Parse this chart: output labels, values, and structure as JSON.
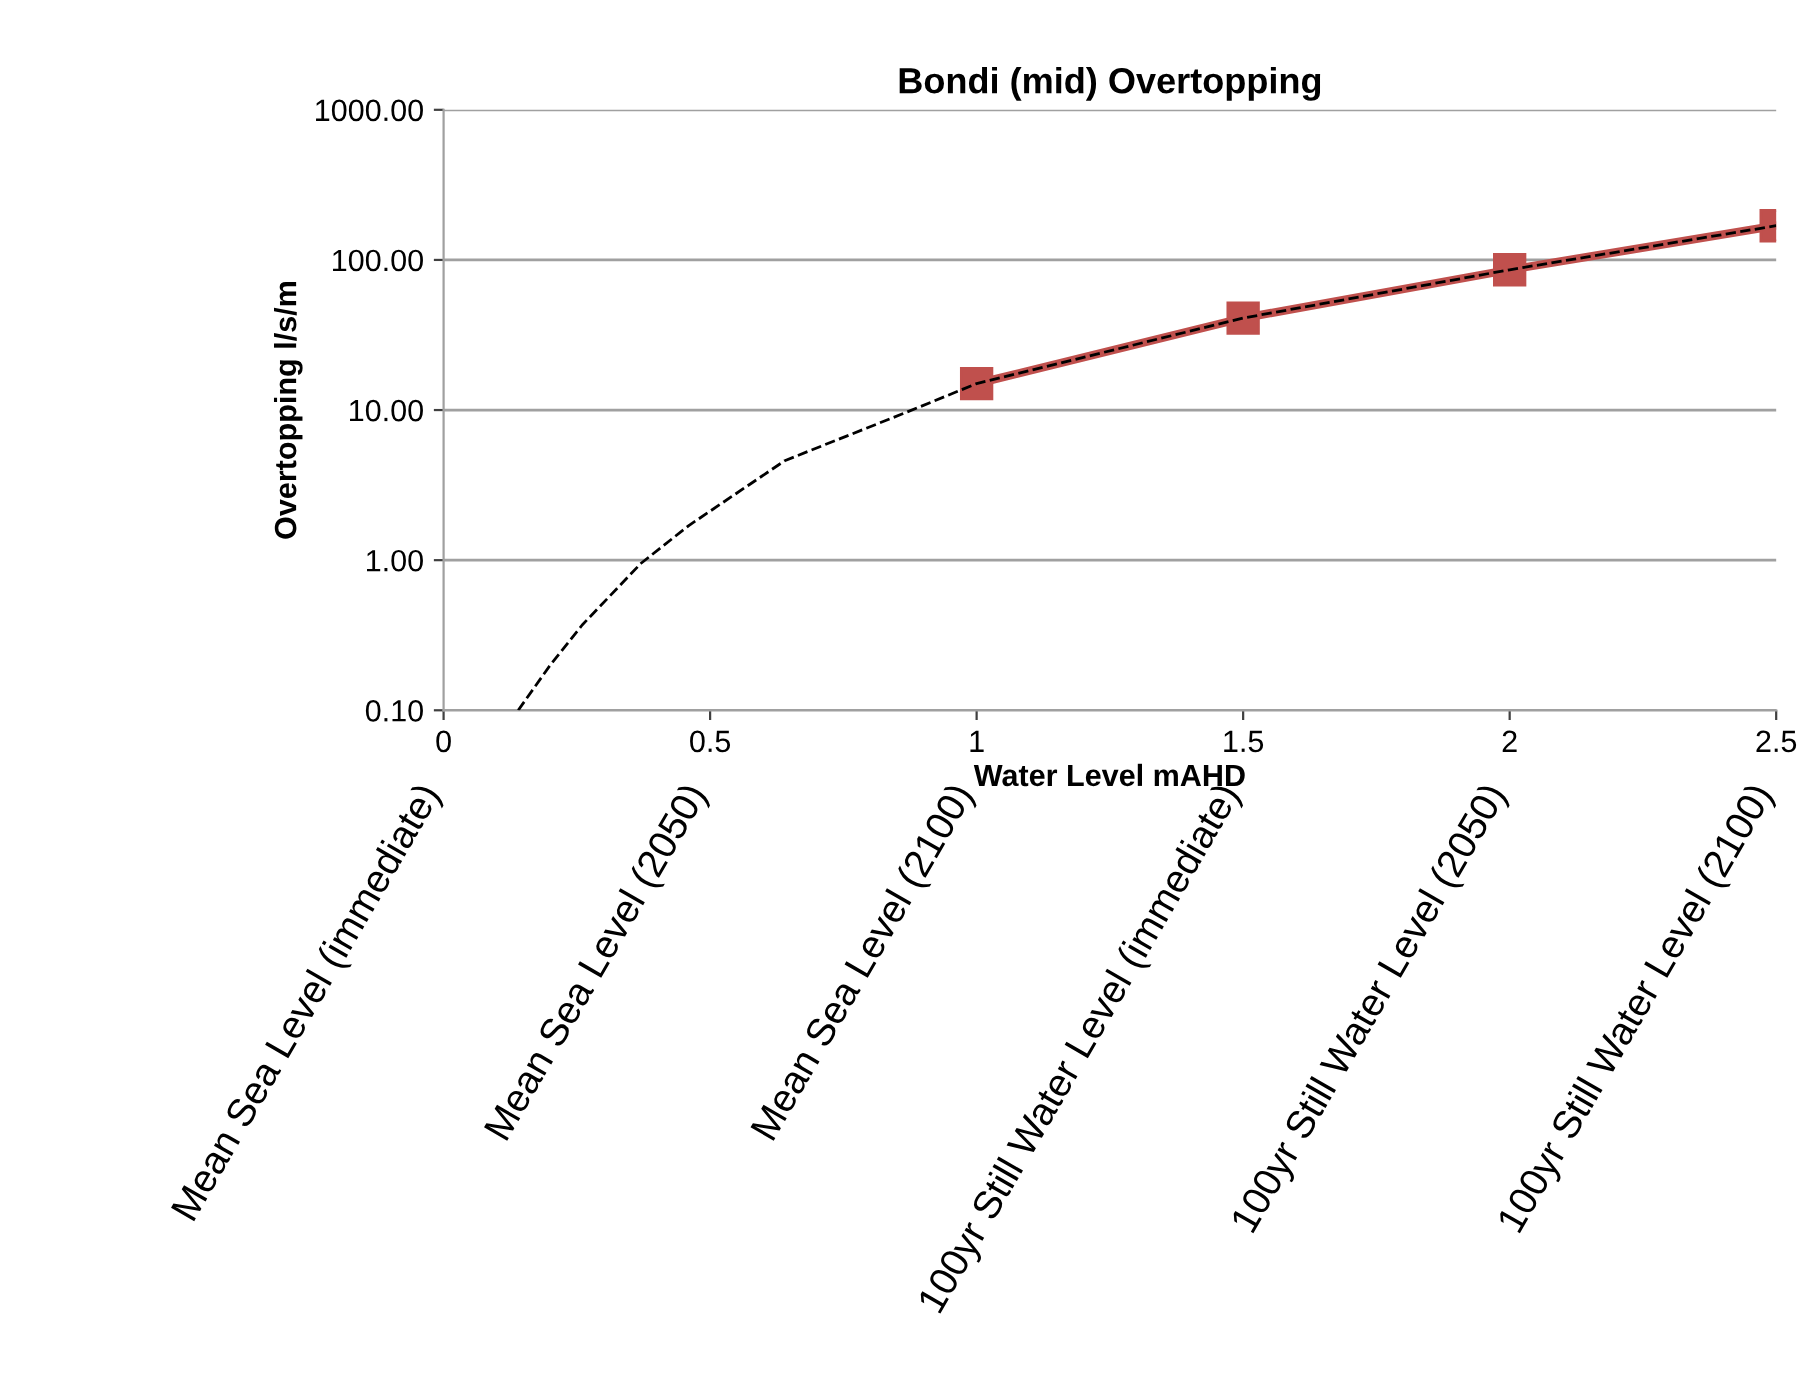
{
  "chart_data": {
    "type": "line",
    "title": "Bondi (mid) Overtopping",
    "xlabel": "Water Level mAHD",
    "ylabel": "Overtopping l/s/m",
    "log": "y",
    "grid": "y",
    "xlim": [
      0,
      2.5
    ],
    "xticks": [
      0,
      0.5,
      1,
      1.5,
      2,
      2.5
    ],
    "ylim": [
      0.1,
      1000
    ],
    "yticks": [
      {
        "value": 0.1,
        "label": "0.10"
      },
      {
        "value": 1,
        "label": "1.00"
      },
      {
        "value": 10,
        "label": "10.00"
      },
      {
        "value": 100,
        "label": "100.00"
      },
      {
        "value": 1000,
        "label": "1000.00"
      }
    ],
    "annotations": [
      "Mean Sea Level (immediate)",
      "Mean Sea Level (2050)",
      "Mean Sea Level (2100)",
      "100yr Still Water Level (immediate)",
      "100yr Still Water Level (2050)",
      "100yr Still Water Level (2100)"
    ],
    "series": [
      {
        "color": "#c0504d",
        "marker": "square",
        "line_style": "solid",
        "x": [
          1,
          1.5,
          2,
          2.5
        ],
        "values": [
          15,
          41,
          86,
          169
        ]
      },
      {
        "color": "#000000",
        "marker": "none",
        "line_style": "dashed",
        "x": [
          0.14,
          0.2,
          0.26,
          0.37,
          0.46,
          0.64,
          0.86,
          1,
          1.5,
          2,
          2.5
        ],
        "values": [
          0.1,
          0.2,
          0.37,
          0.95,
          1.7,
          4.6,
          9.4,
          15,
          41,
          86,
          169
        ]
      }
    ]
  }
}
